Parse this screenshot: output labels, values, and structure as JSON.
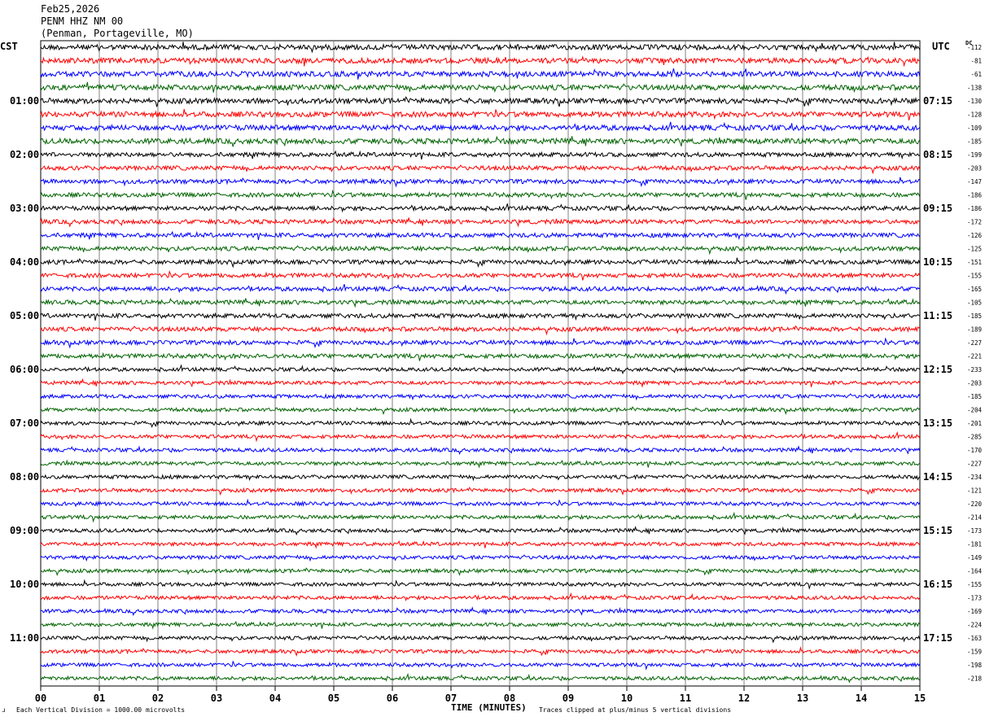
{
  "header": {
    "date": "Feb25,2026",
    "station": "PENM HHZ NM 00",
    "location": "(Penman, Portageville, MO)"
  },
  "labels": {
    "left_tz": "CST",
    "right_tz": "UTC",
    "dc": "DC"
  },
  "colors": {
    "cycle": [
      "#000000",
      "#ff0000",
      "#0000ff",
      "#006400"
    ],
    "grid": "#808080"
  },
  "chart_data": {
    "type": "line",
    "xlabel": "TIME (MINUTES)",
    "xlim": [
      0,
      15
    ],
    "x_ticks": [
      "00",
      "01",
      "02",
      "03",
      "04",
      "05",
      "06",
      "07",
      "08",
      "09",
      "10",
      "11",
      "12",
      "13",
      "14",
      "15"
    ],
    "left_hour_labels": [
      "01:00",
      "02:00",
      "03:00",
      "04:00",
      "05:00",
      "06:00",
      "07:00",
      "08:00",
      "09:00",
      "10:00",
      "11:00"
    ],
    "right_hour_labels": [
      "07:15",
      "08:15",
      "09:15",
      "10:15",
      "11:15",
      "12:15",
      "13:15",
      "14:15",
      "15:15",
      "16:15",
      "17:15"
    ],
    "dc_offsets": [
      -112,
      -81,
      -61,
      -138,
      -130,
      -128,
      -109,
      -185,
      -199,
      -203,
      -147,
      -186,
      -186,
      -172,
      -126,
      -125,
      -151,
      -155,
      -165,
      -105,
      -185,
      -189,
      -227,
      -221,
      -233,
      -203,
      -185,
      -204,
      -201,
      -285,
      -170,
      -227,
      -234,
      -121,
      -220,
      -214,
      -173,
      -181,
      -149,
      -164,
      -155,
      -173,
      -169,
      -224,
      -163,
      -159,
      -198,
      -218
    ],
    "scale_note": "Each Vertical Division = 1000.00 microvolts",
    "clip_note": "Traces clipped at plus/minus 5 vertical divisions"
  },
  "footer": {
    "corner_mark": "ɹ"
  }
}
